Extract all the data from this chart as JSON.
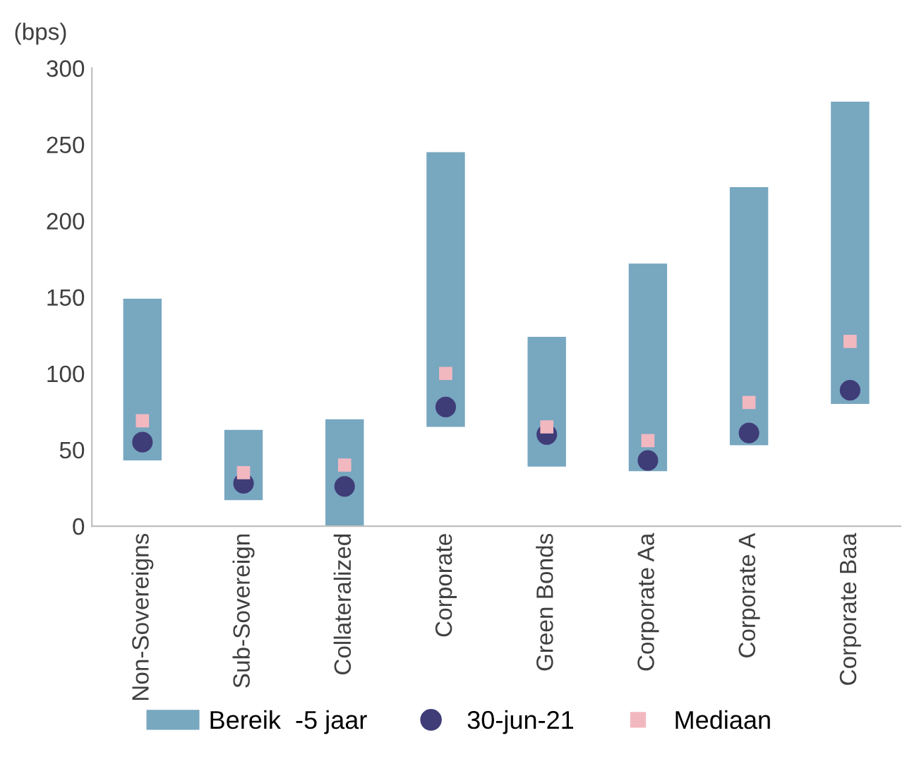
{
  "chart_data": {
    "type": "bar",
    "ylabel": "(bps)",
    "categories": [
      "Non-Sovereigns",
      "Sub-Sovereign",
      "Collateralized",
      "Corporate",
      "Green Bonds",
      "Corporate Aa",
      "Corporate A",
      "Corporate Baa"
    ],
    "ylim": [
      0,
      300
    ],
    "yticks": [
      0,
      50,
      100,
      150,
      200,
      250,
      300
    ],
    "grid": false,
    "legend": "bottom",
    "series": [
      {
        "name": "Bereik  -5 jaar",
        "color": "#78a7c0",
        "base": [
          43,
          17,
          0,
          65,
          39,
          36,
          53,
          80
        ],
        "values": [
          106,
          46,
          70,
          180,
          85,
          136,
          169,
          198
        ]
      },
      {
        "name": "30-jun-21",
        "type": "scatter",
        "marker": "circle",
        "color": "#3f3d78",
        "values": [
          55,
          28,
          26,
          78,
          60,
          43,
          61,
          89
        ]
      },
      {
        "name": "Mediaan",
        "type": "scatter",
        "marker": "square",
        "color": "#f2b8c0",
        "values": [
          69,
          35,
          40,
          100,
          65,
          56,
          81,
          121
        ]
      }
    ]
  }
}
